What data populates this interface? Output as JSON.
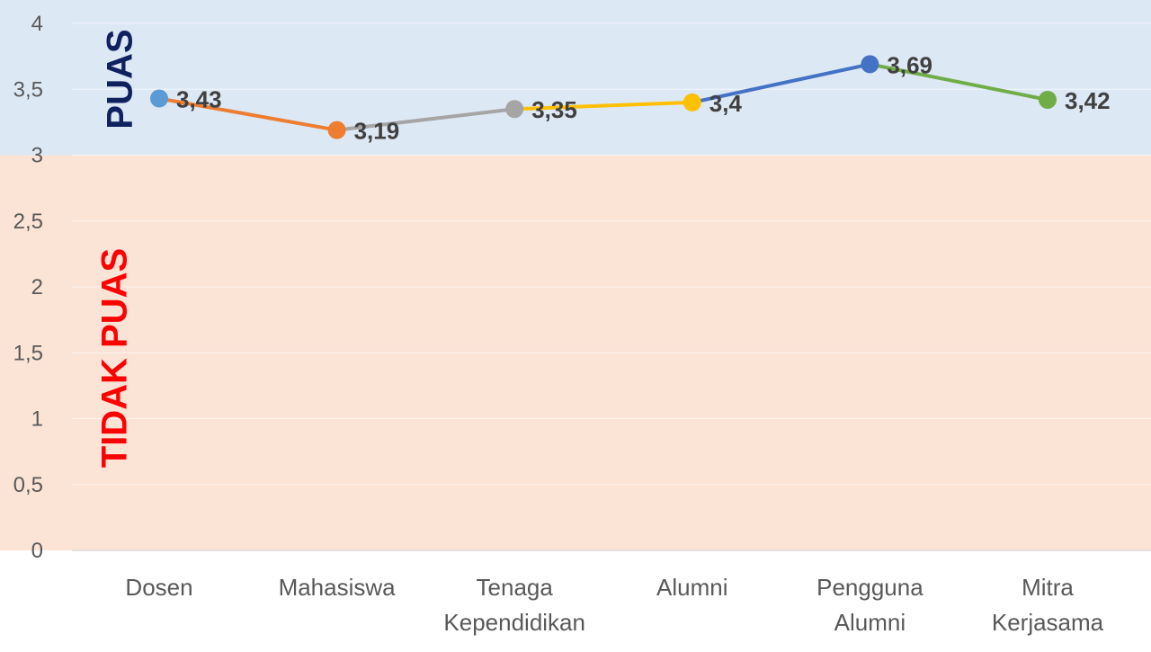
{
  "zones": {
    "upper": {
      "label": "PUAS",
      "from": 3,
      "to": 4,
      "fill": "#dde8f5",
      "text_color": "#10215f"
    },
    "lower": {
      "label": "TIDAK PUAS",
      "from": 0,
      "to": 3,
      "fill": "#fbe3d6",
      "text_color": "#ff0000"
    }
  },
  "chart_data": {
    "type": "line",
    "title": "",
    "xlabel": "",
    "ylabel": "",
    "ylim": [
      0,
      4
    ],
    "y_ticks": [
      "0",
      "0,5",
      "1",
      "1,5",
      "2",
      "2,5",
      "3",
      "3,5",
      "4"
    ],
    "y_tick_values": [
      0,
      0.5,
      1,
      1.5,
      2,
      2.5,
      3,
      3.5,
      4
    ],
    "grid": true,
    "legend": "none",
    "categories": [
      [
        "Dosen"
      ],
      [
        "Mahasiswa"
      ],
      [
        "Tenaga",
        "Kependidikan"
      ],
      [
        "Alumni"
      ],
      [
        "Pengguna",
        "Alumni"
      ],
      [
        "Mitra",
        "Kerjasama"
      ]
    ],
    "values": [
      3.43,
      3.19,
      3.35,
      3.4,
      3.69,
      3.42
    ],
    "value_labels": [
      "3,43",
      "3,19",
      "3,35",
      "3,4",
      "3,69",
      "3,42"
    ],
    "point_colors": [
      "#5b9bd5",
      "#ed7d31",
      "#a5a5a5",
      "#ffc000",
      "#4472c4",
      "#70ad47"
    ]
  }
}
